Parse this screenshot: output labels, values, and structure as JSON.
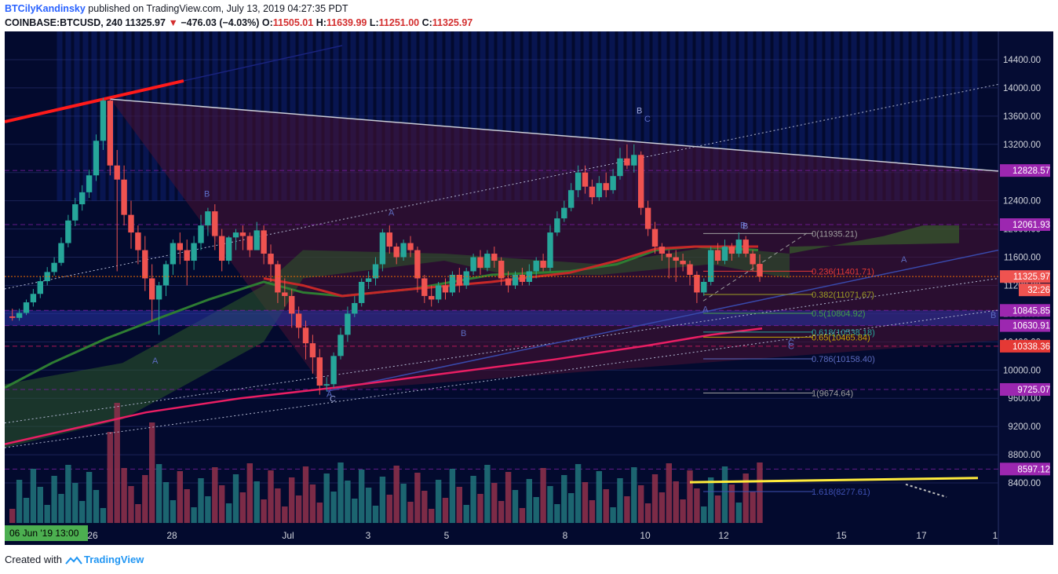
{
  "header": {
    "author": "BTCilyKandinsky",
    "published_text": "published on TradingView.com, July 13, 2019 04:27:35 PDT",
    "symbol": "COINBASE:BTCUSD, 240",
    "last": "11325.97",
    "change": "−476.03 (−4.03%)",
    "o_label": "O:",
    "o": "11505.01",
    "h_label": "H:",
    "h": "11639.99",
    "l_label": "L:",
    "l": "11251.00",
    "c_label": "C:",
    "c": "11325.97"
  },
  "footer": {
    "created_with": "Created with",
    "brand": "TradingView"
  },
  "colors": {
    "background": "#030a2e",
    "up": "#26a69a",
    "down": "#ef5350",
    "purple_tag": "#9c27b0",
    "red_tag": "#e53935",
    "price_tag": "#ef5350",
    "grid": "#1b2357",
    "trend_red": "#ff1a1a",
    "trend_yellow": "#ffeb3b"
  },
  "chart_data": {
    "type": "candlestick",
    "title": "",
    "xlabel": "",
    "ylabel": "",
    "ylim": [
      8200,
      14600
    ],
    "y_ticks": [
      "14400.00",
      "14000.00",
      "13600.00",
      "13200.00",
      "12800.00",
      "12400.00",
      "12000.00",
      "11600.00",
      "11200.00",
      "10800.00",
      "10400.00",
      "10000.00",
      "9600.00",
      "9200.00",
      "8800.00",
      "8400.00"
    ],
    "x_ticks": [
      "26",
      "28",
      "Jul",
      "3",
      "5",
      "8",
      "10",
      "12",
      "15",
      "17",
      "1"
    ],
    "cursor_date": "06 Jun '19   13:00",
    "countdown": "32:26",
    "last_price": "11325.97",
    "price_tags": [
      {
        "price": "12828.57",
        "color": "purple"
      },
      {
        "price": "12061.93",
        "color": "purple"
      },
      {
        "price": "10845.85",
        "color": "purple"
      },
      {
        "price": "10630.91",
        "color": "purple"
      },
      {
        "price": "10338.36",
        "color": "red"
      },
      {
        "price": "9725.07",
        "color": "purple"
      },
      {
        "price": "8597.12",
        "color": "purple"
      }
    ],
    "fib_levels": [
      {
        "label": "0(11935.21)",
        "color": "#9e9e9e"
      },
      {
        "label": "0.236(11401.71)",
        "color": "#e53935"
      },
      {
        "label": "0.382(11071.67)",
        "color": "#9e9d24"
      },
      {
        "label": "0.5(10804.92)",
        "color": "#43a047"
      },
      {
        "label": "0.618(10538.18)",
        "color": "#26a69a"
      },
      {
        "label": "0.65(10465.84)",
        "color": "#c6a700"
      },
      {
        "label": "0.786(10158.40)",
        "color": "#5c6bc0"
      },
      {
        "label": "1(9674.64)",
        "color": "#9e9e9e"
      },
      {
        "label": "1.618(8277.61)",
        "color": "#3f51b5"
      }
    ],
    "wave_labels": [
      "B",
      "C",
      "A",
      "B",
      "A",
      "B",
      "C",
      "B",
      "A",
      "A",
      "B",
      "C",
      "A",
      "B",
      "C"
    ],
    "series": [
      {
        "name": "candles",
        "values": [
          [
            10760,
            10740,
            10870,
            10700
          ],
          [
            10740,
            10810,
            10870,
            10700
          ],
          [
            10810,
            10960,
            11000,
            10780
          ],
          [
            10960,
            11080,
            11150,
            10900
          ],
          [
            11080,
            11260,
            11330,
            11020
          ],
          [
            11260,
            11390,
            11460,
            11200
          ],
          [
            11390,
            11520,
            11600,
            11340
          ],
          [
            11520,
            11800,
            11880,
            11480
          ],
          [
            11800,
            12120,
            12200,
            11740
          ],
          [
            12120,
            12350,
            12440,
            12040
          ],
          [
            12350,
            12520,
            12620,
            12260
          ],
          [
            12520,
            12760,
            12840,
            12440
          ],
          [
            12760,
            13250,
            13340,
            12680
          ],
          [
            13250,
            13820,
            13860,
            13120
          ],
          [
            13820,
            12900,
            13860,
            12760
          ],
          [
            12900,
            12700,
            13120,
            11400
          ],
          [
            12700,
            12200,
            12900,
            12050
          ],
          [
            12200,
            11950,
            12400,
            11720
          ],
          [
            11950,
            11700,
            12050,
            11500
          ],
          [
            11700,
            11300,
            11900,
            11120
          ],
          [
            11300,
            11000,
            11500,
            10700
          ],
          [
            11000,
            11200,
            11250,
            10500
          ],
          [
            11200,
            11500,
            11550,
            11050
          ],
          [
            11500,
            11800,
            11850,
            11350
          ],
          [
            11800,
            11700,
            11950,
            11500
          ],
          [
            11700,
            11550,
            11850,
            11200
          ],
          [
            11550,
            11800,
            11900,
            11420
          ],
          [
            11800,
            12050,
            12200,
            11700
          ],
          [
            12050,
            12250,
            12300,
            11900
          ],
          [
            12250,
            11900,
            12350,
            11700
          ],
          [
            11900,
            11550,
            12000,
            11400
          ],
          [
            11550,
            11880,
            11900,
            11500
          ],
          [
            11880,
            11950,
            12000,
            11700
          ],
          [
            11950,
            11900,
            12050,
            11700
          ],
          [
            11900,
            11700,
            11950,
            11600
          ],
          [
            11700,
            11980,
            12100,
            11800
          ],
          [
            11980,
            11650,
            12050,
            11500
          ],
          [
            11650,
            11500,
            11780,
            11250
          ],
          [
            11500,
            11100,
            11550,
            10950
          ],
          [
            11100,
            11050,
            11300,
            10900
          ],
          [
            11050,
            10800,
            11150,
            10600
          ],
          [
            10800,
            10600,
            10900,
            10450
          ],
          [
            10600,
            10380,
            10700,
            10150
          ],
          [
            10380,
            10180,
            10500,
            9950
          ],
          [
            10180,
            9780,
            10300,
            9650
          ],
          [
            9780,
            9800,
            9900,
            9700
          ],
          [
            9800,
            10200,
            10250,
            9750
          ],
          [
            10200,
            10500,
            10600,
            10150
          ],
          [
            10500,
            10800,
            10900,
            10400
          ],
          [
            10800,
            10950,
            11050,
            10750
          ],
          [
            10950,
            11250,
            11300,
            10900
          ],
          [
            11250,
            11300,
            11400,
            11150
          ],
          [
            11300,
            11500,
            11600,
            11200
          ],
          [
            11500,
            11950,
            12000,
            11400
          ],
          [
            11950,
            11750,
            12050,
            11650
          ],
          [
            11750,
            11600,
            11800,
            11500
          ],
          [
            11600,
            11800,
            11850,
            11550
          ],
          [
            11800,
            11700,
            11900,
            11600
          ],
          [
            11700,
            11300,
            11750,
            11100
          ],
          [
            11300,
            11050,
            11350,
            10950
          ],
          [
            11050,
            11000,
            11200,
            10900
          ],
          [
            11000,
            11200,
            11250,
            10950
          ],
          [
            11200,
            11100,
            11300,
            11000
          ],
          [
            11100,
            11350,
            11400,
            11050
          ],
          [
            11350,
            11200,
            11450,
            11100
          ],
          [
            11200,
            11400,
            11450,
            11150
          ],
          [
            11400,
            11600,
            11650,
            11350
          ],
          [
            11600,
            11450,
            11700,
            11350
          ],
          [
            11450,
            11650,
            11700,
            11400
          ],
          [
            11650,
            11550,
            11750,
            11450
          ],
          [
            11550,
            11300,
            11600,
            11200
          ],
          [
            11300,
            11200,
            11400,
            11100
          ],
          [
            11200,
            11350,
            11400,
            11150
          ],
          [
            11350,
            11250,
            11450,
            11200
          ],
          [
            11250,
            11400,
            11500,
            11200
          ],
          [
            11400,
            11550,
            11600,
            11300
          ],
          [
            11550,
            11450,
            11650,
            11400
          ],
          [
            11450,
            11950,
            12050,
            11400
          ],
          [
            11950,
            12150,
            12250,
            11900
          ],
          [
            12150,
            12300,
            12400,
            12100
          ],
          [
            12300,
            12550,
            12650,
            12250
          ],
          [
            12550,
            12800,
            12900,
            12450
          ],
          [
            12800,
            12600,
            12900,
            12500
          ],
          [
            12600,
            12450,
            12700,
            12350
          ],
          [
            12450,
            12650,
            12750,
            12400
          ],
          [
            12650,
            12550,
            12800,
            12450
          ],
          [
            12550,
            12750,
            12850,
            12500
          ],
          [
            12750,
            13000,
            13150,
            12700
          ],
          [
            13000,
            12900,
            13200,
            12850
          ],
          [
            12900,
            13050,
            13200,
            12800
          ],
          [
            13050,
            12300,
            13100,
            12200
          ],
          [
            12300,
            12000,
            12400,
            11900
          ],
          [
            12000,
            11750,
            12100,
            11650
          ],
          [
            11750,
            11650,
            11800,
            11550
          ],
          [
            11650,
            11600,
            11700,
            11300
          ],
          [
            11600,
            11550,
            11700,
            11250
          ],
          [
            11550,
            11500,
            11650,
            11400
          ],
          [
            11500,
            11350,
            11550,
            11200
          ],
          [
            11350,
            11100,
            11400,
            10950
          ],
          [
            11100,
            11250,
            11300,
            11050
          ],
          [
            11250,
            11700,
            11750,
            11200
          ],
          [
            11700,
            11550,
            11800,
            11500
          ],
          [
            11550,
            11750,
            11850,
            11500
          ],
          [
            11750,
            11650,
            11800,
            11550
          ],
          [
            11650,
            11850,
            11950,
            11600
          ],
          [
            11850,
            11650,
            11900,
            11600
          ],
          [
            11650,
            11500,
            11700,
            11400
          ],
          [
            11505,
            11326,
            11640,
            11251
          ]
        ]
      }
    ]
  }
}
